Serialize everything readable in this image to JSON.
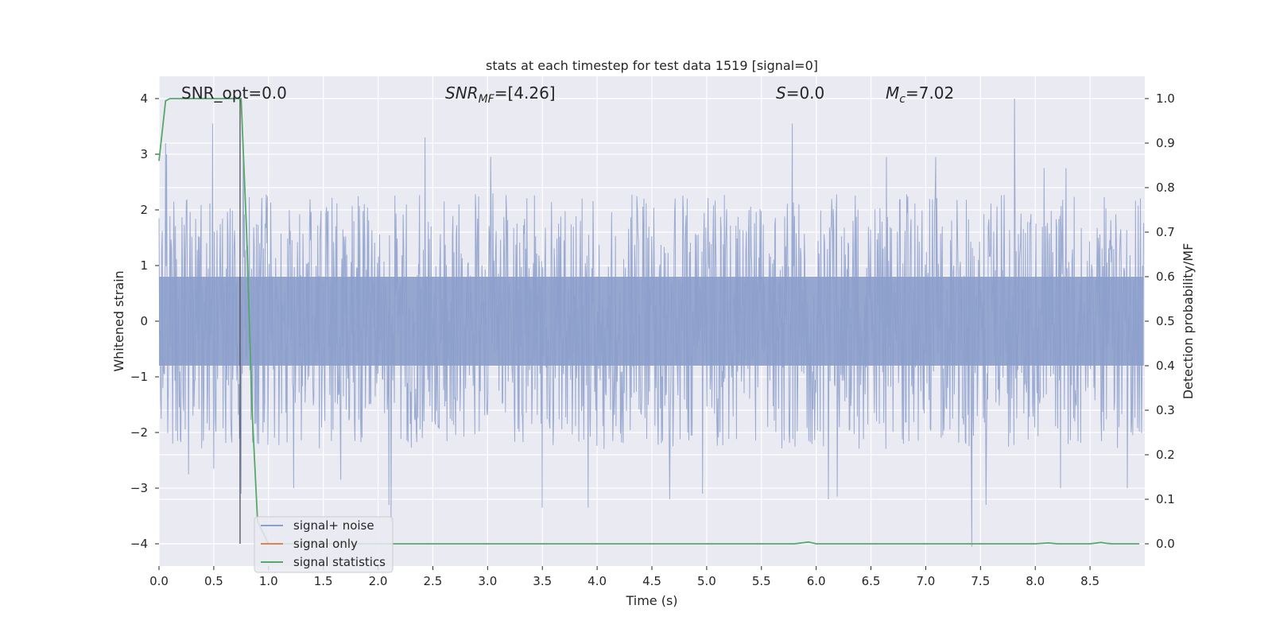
{
  "chart_data": {
    "type": "line",
    "title": "stats at each timestep for test data 1519 [signal=0]",
    "xlabel": "Time (s)",
    "ylabel": "Whitened strain",
    "ylabel_right": "Detection probability/MF",
    "xlim": [
      0.0,
      9.0
    ],
    "ylim_left": [
      -4.4,
      4.4
    ],
    "ylim_right": [
      -0.05,
      1.05
    ],
    "x_ticks": [
      0.0,
      0.5,
      1.0,
      1.5,
      2.0,
      2.5,
      3.0,
      3.5,
      4.0,
      4.5,
      5.0,
      5.5,
      6.0,
      6.5,
      7.0,
      7.5,
      8.0,
      8.5
    ],
    "x_tick_labels": [
      "0.0",
      "0.5",
      "1.0",
      "1.5",
      "2.0",
      "2.5",
      "3.0",
      "3.5",
      "4.0",
      "4.5",
      "5.0",
      "5.5",
      "6.0",
      "6.5",
      "7.0",
      "7.5",
      "8.0",
      "8.5"
    ],
    "y_ticks_left": [
      -4,
      -3,
      -2,
      -1,
      0,
      1,
      2,
      3,
      4
    ],
    "y_tick_labels_left": [
      "−4",
      "−3",
      "−2",
      "−1",
      "0",
      "1",
      "2",
      "3",
      "4"
    ],
    "y_ticks_right": [
      0.0,
      0.1,
      0.2,
      0.3,
      0.4,
      0.5,
      0.6,
      0.7,
      0.8,
      0.9,
      1.0
    ],
    "y_tick_labels_right": [
      "0.0",
      "0.1",
      "0.2",
      "0.3",
      "0.4",
      "0.5",
      "0.6",
      "0.7",
      "0.8",
      "0.9",
      "1.0"
    ],
    "grid": true,
    "legend_position": "bottom-left",
    "annotations": {
      "snr_opt": "SNR_opt=0.0",
      "snr_mf_base": "SNR",
      "snr_mf_sub": "MF",
      "snr_mf_value": "=[4.26]",
      "s_base": "S",
      "s_value": "=0.0",
      "mc_base": "M",
      "mc_sub": "c",
      "mc_value": "=7.02"
    },
    "series": [
      {
        "name": "signal+ noise",
        "axis": "left",
        "color": "#8c9fcb",
        "kind": "noise",
        "note_sample_count": 1800,
        "peaks": [
          {
            "x": 0.06,
            "y": 3.2
          },
          {
            "x": 0.07,
            "y": 3.0
          },
          {
            "x": 0.49,
            "y": 3.55
          },
          {
            "x": 0.5,
            "y": 3.0
          },
          {
            "x": 0.77,
            "y": 3.2
          },
          {
            "x": 0.75,
            "y": -3.1
          },
          {
            "x": 0.5,
            "y": -2.65
          },
          {
            "x": 0.27,
            "y": -2.75
          },
          {
            "x": 1.23,
            "y": -3.0
          },
          {
            "x": 1.66,
            "y": -2.85
          },
          {
            "x": 2.1,
            "y": -3.3
          },
          {
            "x": 2.12,
            "y": -3.6
          },
          {
            "x": 2.43,
            "y": 3.3
          },
          {
            "x": 3.03,
            "y": 2.95
          },
          {
            "x": 3.5,
            "y": -3.35
          },
          {
            "x": 3.92,
            "y": -3.35
          },
          {
            "x": 4.66,
            "y": -3.2
          },
          {
            "x": 4.96,
            "y": -3.1
          },
          {
            "x": 5.78,
            "y": 3.55
          },
          {
            "x": 6.11,
            "y": -3.2
          },
          {
            "x": 6.19,
            "y": -3.15
          },
          {
            "x": 7.42,
            "y": -4.05
          },
          {
            "x": 7.55,
            "y": -3.3
          },
          {
            "x": 7.81,
            "y": 4.0
          },
          {
            "x": 8.23,
            "y": -3.0
          },
          {
            "x": 8.84,
            "y": -3.0
          },
          {
            "x": 6.64,
            "y": 2.95
          },
          {
            "x": 7.09,
            "y": 2.95
          },
          {
            "x": 8.08,
            "y": 2.75
          },
          {
            "x": 8.28,
            "y": 2.75
          }
        ]
      },
      {
        "name": "signal only",
        "axis": "left",
        "color": "#dd8452",
        "x": [
          0.0,
          9.0
        ],
        "y": [
          0.0,
          0.0
        ]
      },
      {
        "name": "signal statistics",
        "axis": "right",
        "color": "#55a868",
        "x": [
          0.0,
          0.06,
          0.1,
          0.15,
          0.2,
          0.3,
          0.4,
          0.5,
          0.6,
          0.7,
          0.74,
          0.75,
          0.8,
          0.85,
          0.9,
          1.0,
          1.5,
          2.0,
          3.0,
          4.0,
          5.0,
          5.5,
          5.8,
          5.93,
          6.0,
          6.5,
          7.0,
          7.5,
          8.0,
          8.12,
          8.2,
          8.5,
          8.6,
          8.65,
          8.7,
          8.95
        ],
        "y": [
          0.86,
          0.995,
          1.0,
          1.0,
          1.0,
          1.0,
          1.0,
          1.0,
          1.0,
          1.0,
          1.0,
          1.0,
          0.7,
          0.3,
          0.05,
          0.0,
          0.0,
          0.0,
          0.0,
          0.0,
          0.0,
          0.0,
          0.0,
          0.004,
          0.0,
          0.0,
          0.0,
          0.0,
          0.0,
          0.002,
          0.0,
          0.0,
          0.003,
          0.001,
          0.0,
          0.0
        ]
      }
    ],
    "marker_line": {
      "x": 0.74,
      "y_top": 4.0,
      "y_bottom": -4.0,
      "color": "#444444"
    }
  }
}
